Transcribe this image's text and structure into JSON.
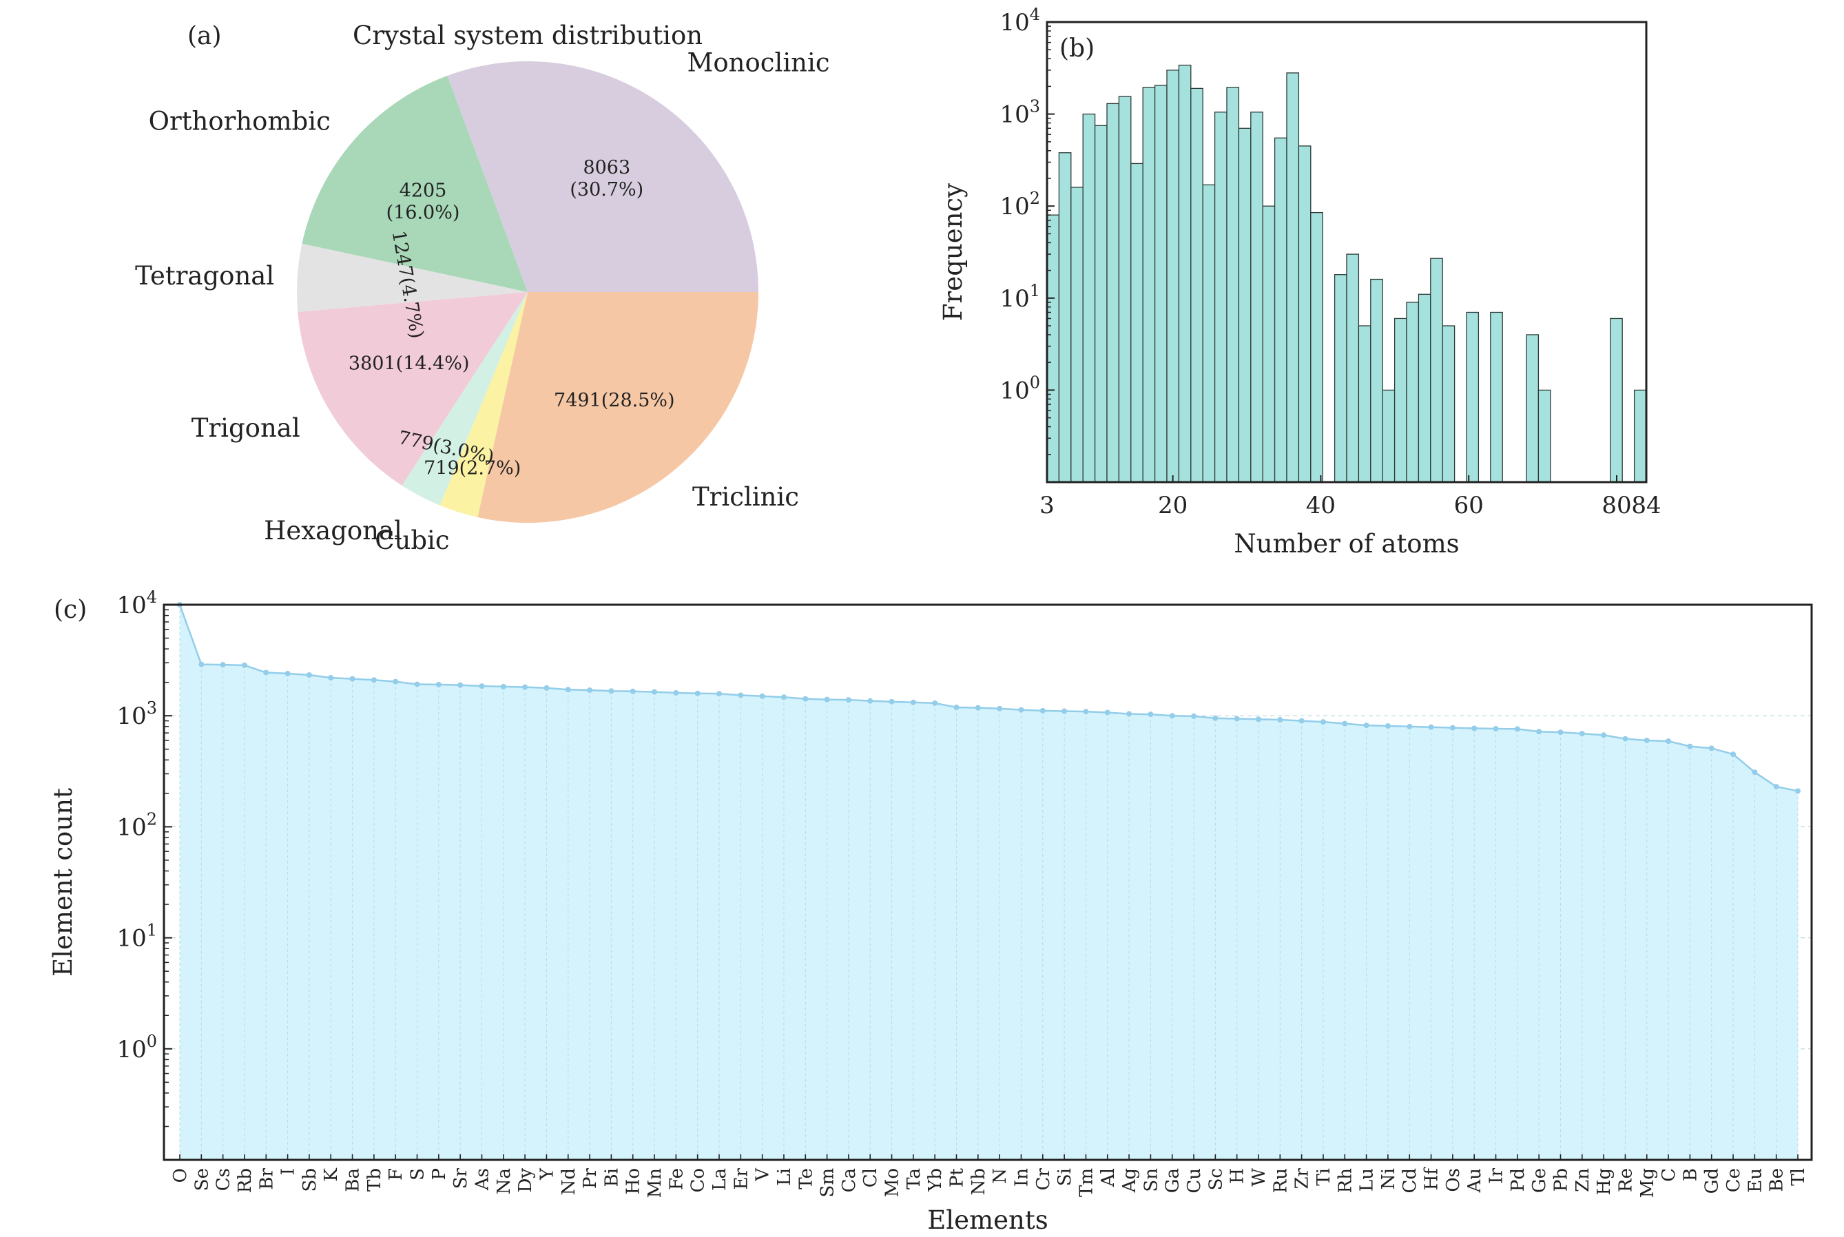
{
  "colors": {
    "triclinic": "#f6c7a5",
    "cubic": "#fbf2a3",
    "hexagonal": "#d3f0e4",
    "trigonal": "#f2cbd8",
    "tetragonal": "#e3e3e3",
    "orthorhombic": "#a8d8b8",
    "monoclinic": "#d8cddf",
    "hist_bar": "#a6e2dd",
    "area_fill": "#d4f3fc",
    "area_line": "#93cdea"
  },
  "chart_data": [
    {
      "panel": "(a)",
      "type": "pie",
      "title": "Crystal system distribution",
      "slices": [
        {
          "label": "Triclinic",
          "value": 7491,
          "pct_label": "7491(28.5%)",
          "color_key": "triclinic"
        },
        {
          "label": "Cubic",
          "value": 719,
          "pct_label": "719(2.7%)",
          "color_key": "cubic"
        },
        {
          "label": "Hexagonal",
          "value": 779,
          "pct_label": "779(3.0%)",
          "color_key": "hexagonal"
        },
        {
          "label": "Trigonal",
          "value": 3801,
          "pct_label": "3801(14.4%)",
          "color_key": "trigonal"
        },
        {
          "label": "Tetragonal",
          "value": 1247,
          "pct_label": "1247(4.7%)",
          "color_key": "tetragonal"
        },
        {
          "label": "Orthorhombic",
          "value": 4205,
          "pct_label": "4205\n(16.0%)",
          "color_key": "orthorhombic"
        },
        {
          "label": "Monoclinic",
          "value": 8063,
          "pct_label": "8063\n(30.7%)",
          "color_key": "monoclinic"
        }
      ]
    },
    {
      "panel": "(b)",
      "type": "bar",
      "subtype": "histogram",
      "xlabel": "Number of atoms",
      "ylabel": "Frequency",
      "xlim": [
        3,
        84
      ],
      "ylim_log10": [
        -1,
        4
      ],
      "xticks": [
        3,
        20,
        40,
        60,
        80,
        84
      ],
      "yticks_exp": [
        0,
        1,
        2,
        3,
        4
      ],
      "tick_base": "10",
      "bin_width": 1.62,
      "bin_counts": [
        80,
        380,
        160,
        1000,
        750,
        1300,
        1550,
        290,
        1950,
        2050,
        3000,
        3400,
        1900,
        170,
        1050,
        1950,
        700,
        1050,
        100,
        550,
        2800,
        450,
        85,
        0,
        18,
        30,
        5,
        16,
        1,
        6,
        9,
        11,
        27,
        5,
        0,
        7,
        0,
        7,
        0,
        0,
        4,
        1,
        0,
        0,
        0,
        0,
        0,
        6,
        0,
        1
      ]
    },
    {
      "panel": "(c)",
      "type": "area",
      "xlabel": "Elements",
      "ylabel": "Element count",
      "ylim_log10": [
        -1,
        4
      ],
      "yticks_exp": [
        0,
        1,
        2,
        3,
        4
      ],
      "tick_base": "10",
      "categories": [
        "O",
        "Se",
        "Cs",
        "Rb",
        "Br",
        "I",
        "Sb",
        "K",
        "Ba",
        "Tb",
        "F",
        "S",
        "P",
        "Sr",
        "As",
        "Na",
        "Dy",
        "Y",
        "Nd",
        "Pr",
        "Bi",
        "Ho",
        "Mn",
        "Fe",
        "Co",
        "La",
        "Er",
        "V",
        "Li",
        "Te",
        "Sm",
        "Ca",
        "Cl",
        "Mo",
        "Ta",
        "Yb",
        "Pt",
        "Nb",
        "N",
        "In",
        "Cr",
        "Si",
        "Tm",
        "Al",
        "Ag",
        "Sn",
        "Ga",
        "Cu",
        "Sc",
        "H",
        "W",
        "Ru",
        "Zr",
        "Ti",
        "Rh",
        "Lu",
        "Ni",
        "Cd",
        "Hf",
        "Os",
        "Au",
        "Ir",
        "Pd",
        "Ge",
        "Pb",
        "Zn",
        "Hg",
        "Re",
        "Mg",
        "C",
        "B",
        "Gd",
        "Ce",
        "Eu",
        "Be",
        "Tl"
      ],
      "values": [
        10000,
        2900,
        2880,
        2850,
        2450,
        2400,
        2330,
        2200,
        2150,
        2100,
        2030,
        1920,
        1910,
        1890,
        1850,
        1830,
        1810,
        1780,
        1720,
        1700,
        1670,
        1660,
        1640,
        1610,
        1590,
        1580,
        1530,
        1500,
        1470,
        1420,
        1400,
        1390,
        1360,
        1340,
        1320,
        1300,
        1190,
        1180,
        1160,
        1130,
        1110,
        1100,
        1090,
        1070,
        1040,
        1030,
        1000,
        990,
        950,
        940,
        930,
        920,
        900,
        880,
        850,
        820,
        810,
        800,
        790,
        780,
        770,
        765,
        760,
        720,
        710,
        690,
        670,
        620,
        600,
        590,
        530,
        510,
        450,
        310,
        230,
        210
      ]
    }
  ]
}
